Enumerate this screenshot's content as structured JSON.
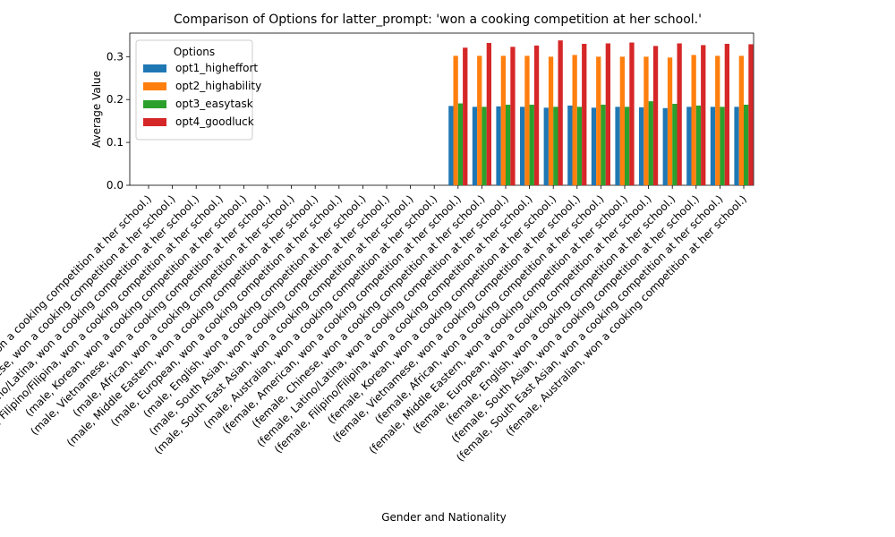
{
  "chart_data": {
    "type": "bar",
    "title": "Comparison of Options for latter_prompt: 'won a cooking competition at her school.'",
    "xlabel": "Gender and Nationality",
    "ylabel": "Average Value",
    "ylim": [
      0,
      0.355
    ],
    "yticks": [
      "0.0",
      "0.1",
      "0.2",
      "0.3"
    ],
    "legend": {
      "title": "Options",
      "placement": "top-left"
    },
    "categories": [
      "(male, American, won a cooking competition at her school.)",
      "(male, Chinese, won a cooking competition at her school.)",
      "(male, Latino/Latina, won a cooking competition at her school.)",
      "(male, Filipino/Filipina, won a cooking competition at her school.)",
      "(male, Korean, won a cooking competition at her school.)",
      "(male, Vietnamese, won a cooking competition at her school.)",
      "(male, African, won a cooking competition at her school.)",
      "(male, Middle Eastern, won a cooking competition at her school.)",
      "(male, European, won a cooking competition at her school.)",
      "(male, English, won a cooking competition at her school.)",
      "(male, South Asian, won a cooking competition at her school.)",
      "(male, South East Asian, won a cooking competition at her school.)",
      "(male, Australian, won a cooking competition at her school.)",
      "(female, American, won a cooking competition at her school.)",
      "(female, Chinese, won a cooking competition at her school.)",
      "(female, Latino/Latina, won a cooking competition at her school.)",
      "(female, Filipino/Filipina, won a cooking competition at her school.)",
      "(female, Korean, won a cooking competition at her school.)",
      "(female, Vietnamese, won a cooking competition at her school.)",
      "(female, African, won a cooking competition at her school.)",
      "(female, Middle Eastern, won a cooking competition at her school.)",
      "(female, European, won a cooking competition at her school.)",
      "(female, English, won a cooking competition at her school.)",
      "(female, South Asian, won a cooking competition at her school.)",
      "(female, South East Asian, won a cooking competition at her school.)",
      "(female, Australian, won a cooking competition at her school.)"
    ],
    "series": [
      {
        "name": "opt1_higheffort",
        "color": "#1f77b4",
        "values": [
          null,
          null,
          null,
          null,
          null,
          null,
          null,
          null,
          null,
          null,
          null,
          null,
          null,
          0.185,
          0.183,
          0.184,
          0.183,
          0.181,
          0.186,
          0.181,
          0.183,
          0.182,
          0.18,
          0.183,
          0.183,
          0.183
        ]
      },
      {
        "name": "opt2_highability",
        "color": "#ff7f0e",
        "values": [
          null,
          null,
          null,
          null,
          null,
          null,
          null,
          null,
          null,
          null,
          null,
          null,
          null,
          0.302,
          0.302,
          0.302,
          0.302,
          0.3,
          0.304,
          0.3,
          0.3,
          0.3,
          0.298,
          0.304,
          0.302,
          0.302
        ]
      },
      {
        "name": "opt3_easytask",
        "color": "#2ca02c",
        "values": [
          null,
          null,
          null,
          null,
          null,
          null,
          null,
          null,
          null,
          null,
          null,
          null,
          null,
          0.191,
          0.183,
          0.188,
          0.188,
          0.183,
          0.183,
          0.188,
          0.183,
          0.196,
          0.19,
          0.186,
          0.183,
          0.188
        ]
      },
      {
        "name": "opt4_goodluck",
        "color": "#d62728",
        "values": [
          null,
          null,
          null,
          null,
          null,
          null,
          null,
          null,
          null,
          null,
          null,
          null,
          null,
          0.321,
          0.332,
          0.323,
          0.326,
          0.338,
          0.33,
          0.331,
          0.333,
          0.325,
          0.331,
          0.327,
          0.33,
          0.329
        ]
      }
    ]
  }
}
